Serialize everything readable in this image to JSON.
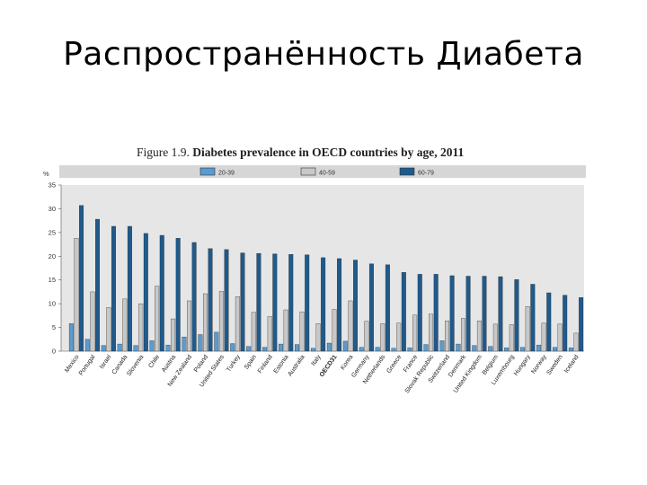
{
  "slide": {
    "title": "Распространённость Диабета"
  },
  "figure": {
    "number": "Figure 1.9.",
    "caption": "Diabetes prevalence in OECD countries by age, 2011"
  },
  "chart_data": {
    "type": "bar",
    "ylabel": "%",
    "ylim": [
      0,
      35
    ],
    "yticks": [
      0,
      5,
      10,
      15,
      20,
      25,
      30,
      35
    ],
    "grid": false,
    "legend_position": "top",
    "categories": [
      "Mexico",
      "Portugal",
      "Israel",
      "Canada",
      "Slovenia",
      "Chile",
      "Austria",
      "New Zealand",
      "Poland",
      "United States",
      "Turkey",
      "Spain",
      "Finland",
      "Estonia",
      "Australia",
      "Italy",
      "OECD31",
      "Korea",
      "Germany",
      "Netherlands",
      "Greece",
      "France",
      "Slovak Republic",
      "Switzerland",
      "Denmark",
      "United Kingdom",
      "Belgium",
      "Luxembourg",
      "Hungary",
      "Norway",
      "Sweden",
      "Iceland"
    ],
    "series": [
      {
        "name": "20-39",
        "color": "#5b9bd0",
        "values": [
          5.8,
          2.5,
          1.2,
          1.5,
          1.2,
          2.2,
          1.3,
          3.0,
          3.5,
          4.0,
          1.6,
          1.0,
          0.8,
          1.5,
          1.4,
          0.6,
          1.7,
          2.1,
          0.8,
          0.8,
          0.6,
          0.7,
          1.4,
          2.2,
          1.5,
          1.2,
          1.0,
          0.7,
          0.8,
          1.3,
          0.8,
          0.7
        ]
      },
      {
        "name": "40-59",
        "color": "#c8c8c8",
        "values": [
          23.8,
          12.5,
          9.2,
          11.0,
          10.0,
          13.7,
          6.8,
          10.6,
          12.1,
          12.6,
          11.5,
          8.2,
          7.3,
          8.7,
          8.3,
          5.8,
          8.8,
          10.6,
          6.3,
          5.8,
          5.9,
          7.6,
          7.8,
          6.4,
          6.9,
          6.4,
          5.7,
          5.6,
          9.4,
          5.9,
          5.7,
          3.8
        ]
      },
      {
        "name": "60-79",
        "color": "#1f5a8c",
        "values": [
          30.7,
          27.8,
          26.3,
          26.3,
          24.8,
          24.4,
          23.8,
          22.9,
          21.6,
          21.4,
          20.7,
          20.6,
          20.5,
          20.4,
          20.3,
          19.7,
          19.5,
          19.2,
          18.4,
          18.2,
          16.6,
          16.2,
          16.2,
          15.9,
          15.8,
          15.8,
          15.7,
          15.1,
          14.1,
          12.3,
          11.8,
          11.3
        ]
      }
    ]
  }
}
